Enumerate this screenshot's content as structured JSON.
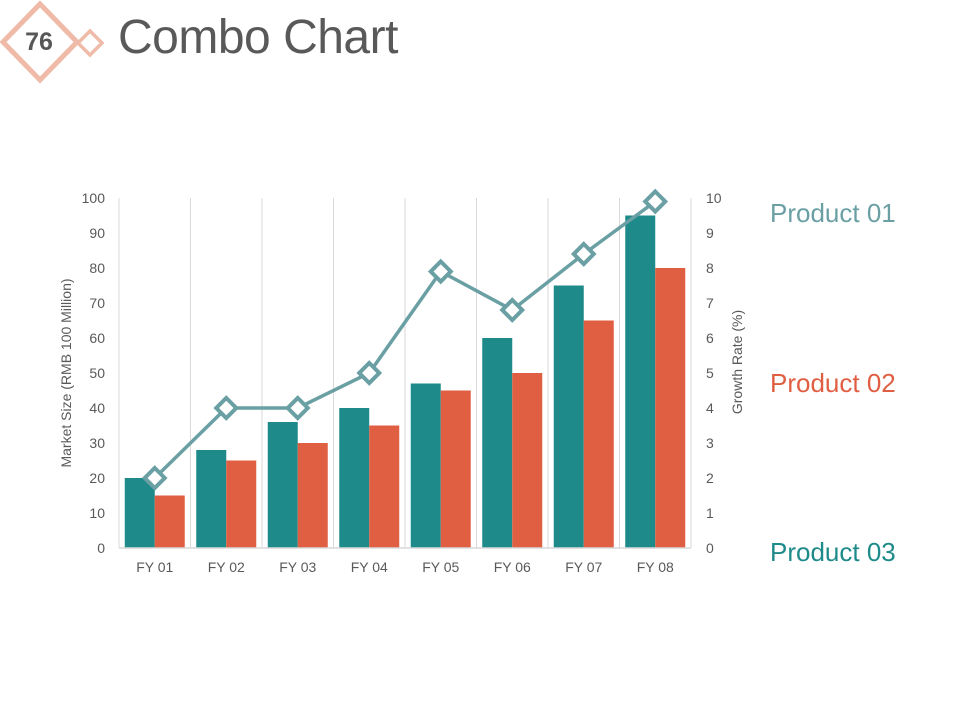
{
  "slide": {
    "number": "76",
    "title": "Combo Chart"
  },
  "colors": {
    "accent_pink": "#efbba8",
    "product_01": "#6a9fa4",
    "product_02": "#e05e42",
    "product_03": "#1e8a8a",
    "gridline": "#d9d9d9",
    "text": "#595959"
  },
  "legend": [
    {
      "label": "Product 01",
      "color_key": "product_01"
    },
    {
      "label": "Product 02",
      "color_key": "product_02"
    },
    {
      "label": "Product 03",
      "color_key": "product_03"
    }
  ],
  "chart_data": {
    "type": "bar",
    "title": "",
    "categories": [
      "FY 01",
      "FY 02",
      "FY 03",
      "FY 04",
      "FY 05",
      "FY 06",
      "FY 07",
      "FY 08"
    ],
    "series": [
      {
        "name": "Product 03",
        "kind": "bar",
        "axis": "primary",
        "color_key": "product_03",
        "values": [
          20,
          28,
          36,
          40,
          47,
          60,
          75,
          95
        ]
      },
      {
        "name": "Product 02",
        "kind": "bar",
        "axis": "primary",
        "color_key": "product_02",
        "values": [
          15,
          25,
          30,
          35,
          45,
          50,
          65,
          80
        ]
      },
      {
        "name": "Product 01",
        "kind": "line",
        "axis": "secondary",
        "color_key": "product_01",
        "values": [
          2,
          4,
          4,
          5,
          7.9,
          6.8,
          8.4,
          9.9
        ]
      }
    ],
    "ylabel": "Market Size (RMB 100 Million)",
    "y2label": "Growth Rate (%)",
    "ylim": [
      0,
      100
    ],
    "y2lim": [
      0,
      10
    ],
    "yticks": [
      "0",
      "10",
      "20",
      "30",
      "40",
      "50",
      "60",
      "70",
      "80",
      "90",
      "100"
    ],
    "y2ticks": [
      "0",
      "1",
      "2",
      "3",
      "4",
      "5",
      "6",
      "7",
      "8",
      "9",
      "10"
    ],
    "grid": "vertical"
  }
}
